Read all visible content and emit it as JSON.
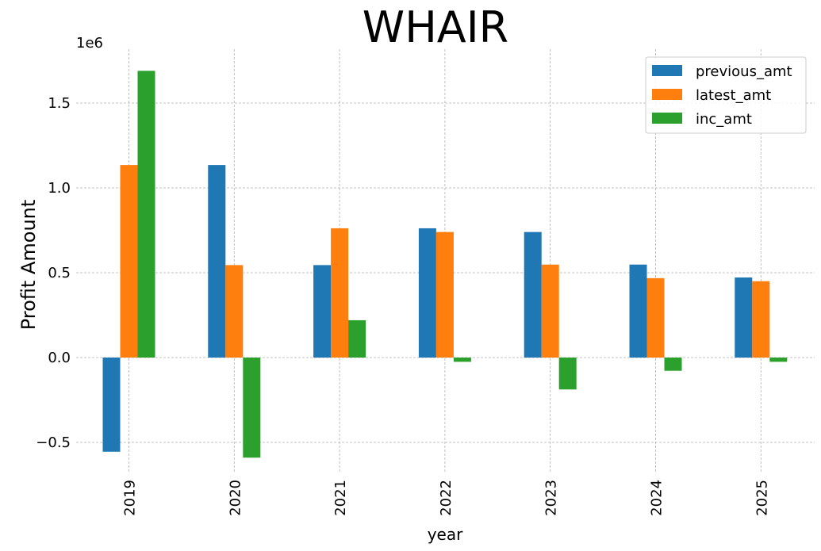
{
  "chart_data": {
    "type": "bar",
    "title": "WHAIR",
    "xlabel": "year",
    "ylabel": "Profit Amount",
    "y_offset_label": "1e6",
    "categories": [
      "2019",
      "2020",
      "2021",
      "2022",
      "2023",
      "2024",
      "2025"
    ],
    "series": [
      {
        "name": "previous_amt",
        "color": "#1f77b4",
        "values": [
          -0.555,
          1.135,
          0.545,
          0.762,
          0.74,
          0.548,
          0.472
        ]
      },
      {
        "name": "latest_amt",
        "color": "#ff7f0e",
        "values": [
          1.135,
          0.545,
          0.762,
          0.74,
          0.548,
          0.468,
          0.45
        ]
      },
      {
        "name": "inc_amt",
        "color": "#2ca02c",
        "values": [
          1.69,
          -0.59,
          0.22,
          -0.025,
          -0.188,
          -0.078,
          -0.025
        ]
      }
    ],
    "yticks": [
      -0.5,
      0.0,
      0.5,
      1.0,
      1.5
    ],
    "ytick_labels": [
      "−0.5",
      "0.0",
      "0.5",
      "1.0",
      "1.5"
    ],
    "ylim": [
      -0.68,
      1.8
    ],
    "grid": true,
    "legend_position": "top-right"
  }
}
